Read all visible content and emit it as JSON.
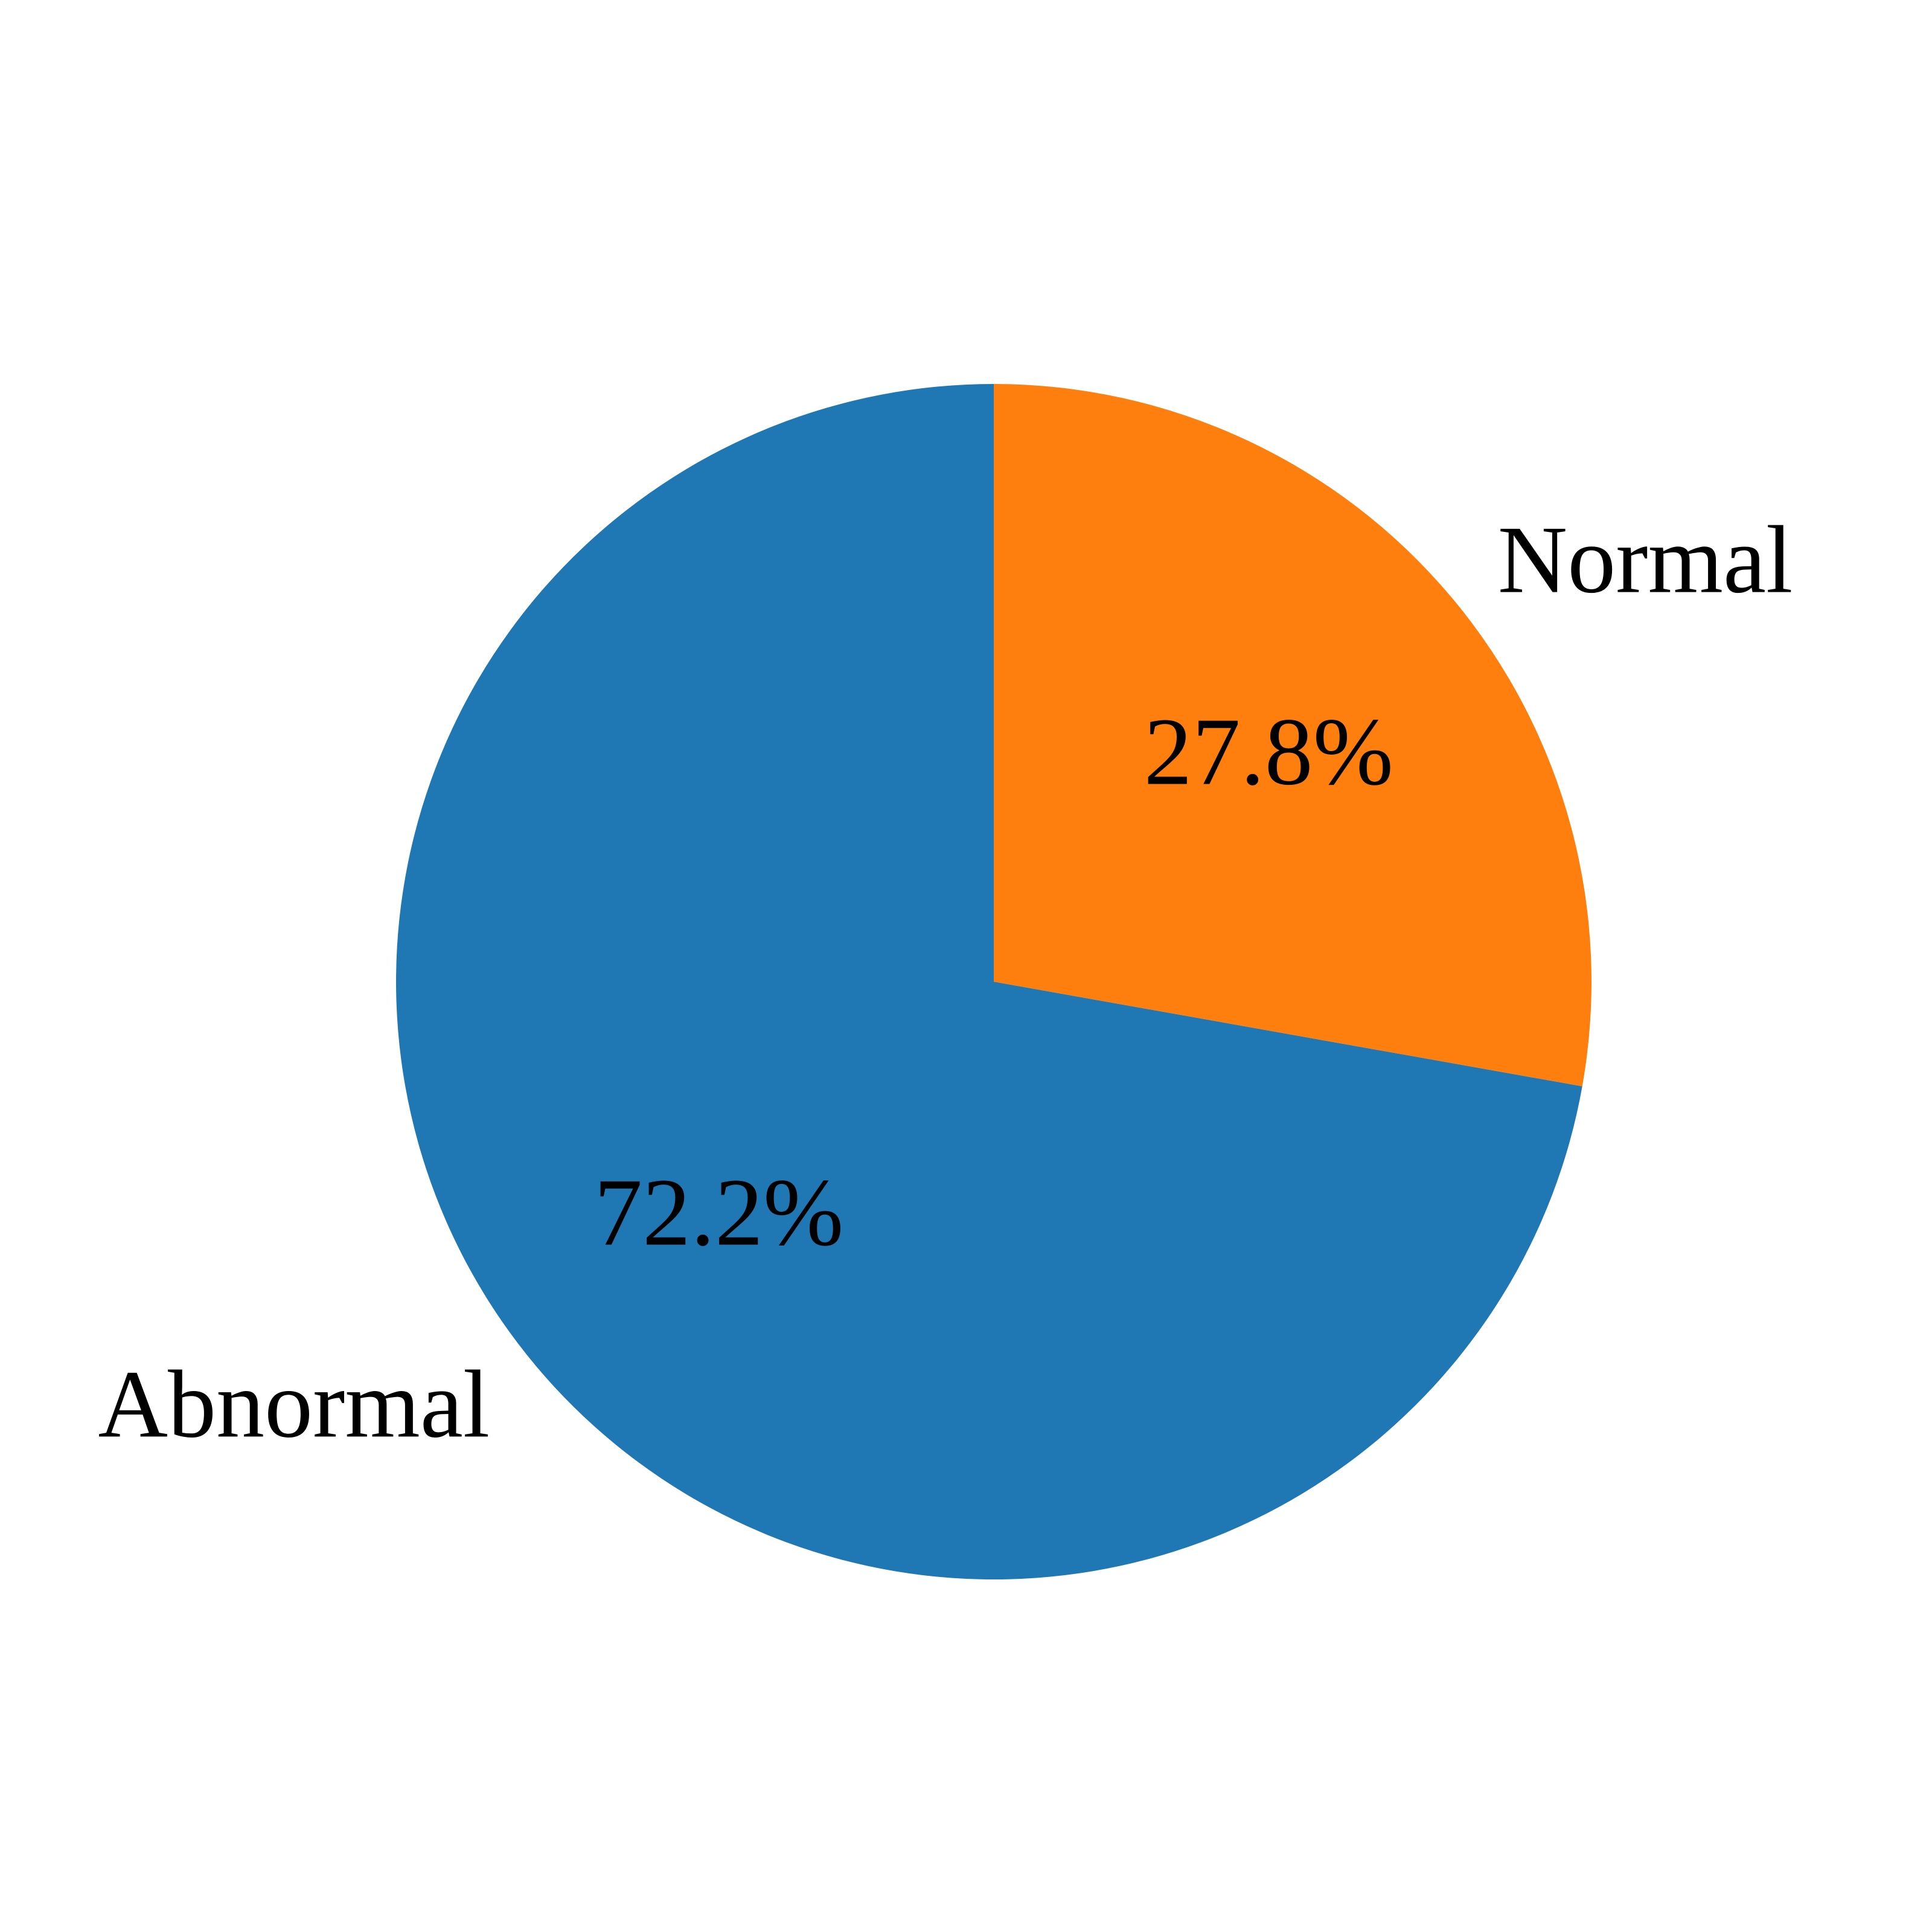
{
  "chart_data": {
    "type": "pie",
    "categories": [
      "Abnormal",
      "Normal"
    ],
    "values": [
      72.2,
      27.8
    ],
    "value_labels": [
      "72.2%",
      "27.8%"
    ],
    "colors": [
      "#1f77b4",
      "#ff7f0e"
    ],
    "start": "top",
    "direction": "counterclockwise"
  }
}
